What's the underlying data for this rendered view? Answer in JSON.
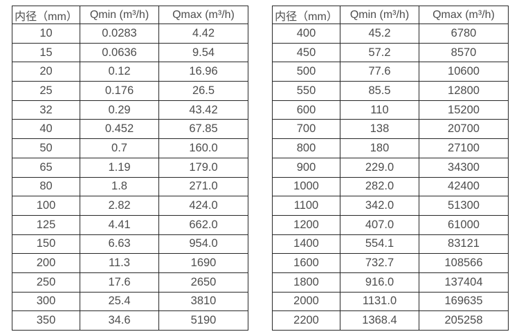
{
  "colors": {
    "background": "#ffffff",
    "border": "#262626",
    "text": "#4d4d4d"
  },
  "left_table": {
    "headers": [
      "内径（mm）",
      "Qmin (m³/h)",
      "Qmax (m³/h)"
    ],
    "rows": [
      [
        "10",
        "0.0283",
        "4.42"
      ],
      [
        "15",
        "0.0636",
        "9.54"
      ],
      [
        "20",
        "0.12",
        "16.96"
      ],
      [
        "25",
        "0.176",
        "26.5"
      ],
      [
        "32",
        "0.29",
        "43.42"
      ],
      [
        "40",
        "0.452",
        "67.85"
      ],
      [
        "50",
        "0.7",
        "160.0"
      ],
      [
        "65",
        "1.19",
        "179.0"
      ],
      [
        "80",
        "1.8",
        "271.0"
      ],
      [
        "100",
        "2.82",
        "424.0"
      ],
      [
        "125",
        "4.41",
        "662.0"
      ],
      [
        "150",
        "6.63",
        "954.0"
      ],
      [
        "200",
        "11.3",
        "1690"
      ],
      [
        "250",
        "17.6",
        "2650"
      ],
      [
        "300",
        "25.4",
        "3810"
      ],
      [
        "350",
        "34.6",
        "5190"
      ]
    ]
  },
  "right_table": {
    "headers": [
      "内径（mm）",
      "Qmin (m³/h)",
      "Qmax (m³/h)"
    ],
    "rows": [
      [
        "400",
        "45.2",
        "6780"
      ],
      [
        "450",
        "57.2",
        "8570"
      ],
      [
        "500",
        "77.6",
        "10600"
      ],
      [
        "550",
        "85.5",
        "12800"
      ],
      [
        "600",
        "110",
        "15200"
      ],
      [
        "700",
        "138",
        "20700"
      ],
      [
        "800",
        "180",
        "27100"
      ],
      [
        "900",
        "229.0",
        "34300"
      ],
      [
        "1000",
        "282.0",
        "42400"
      ],
      [
        "1100",
        "342.0",
        "51300"
      ],
      [
        "1200",
        "407.0",
        "61000"
      ],
      [
        "1400",
        "554.1",
        "83121"
      ],
      [
        "1600",
        "732.7",
        "108566"
      ],
      [
        "1800",
        "916.0",
        "137404"
      ],
      [
        "2000",
        "1131.0",
        "169635"
      ],
      [
        "2200",
        "1368.4",
        "205258"
      ]
    ]
  }
}
